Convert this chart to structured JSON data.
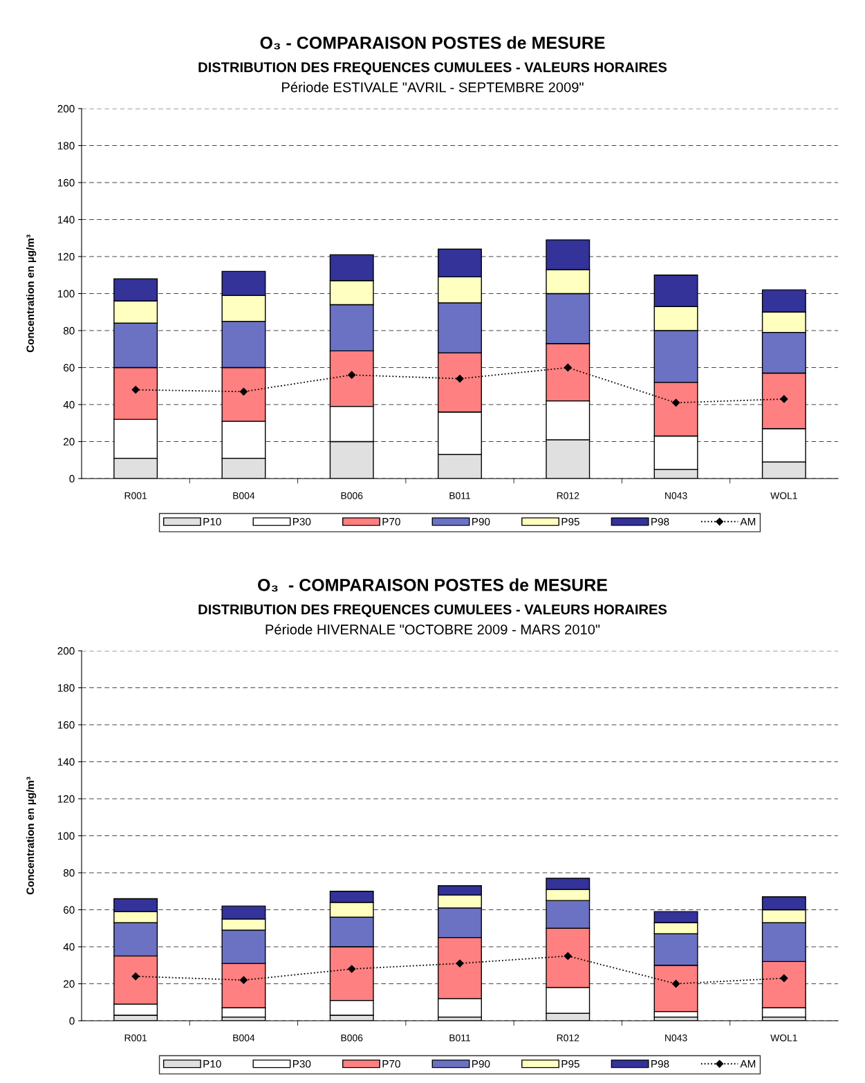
{
  "chart_data": [
    {
      "type": "bar",
      "title": "O₃ - COMPARAISON POSTES de MESURE\nDISTRIBUTION DES FREQUENCES CUMULEES - VALEURS HORAIRES",
      "subtitle": "Période ESTIVALE \"AVRIL - SEPTEMBRE 2009\"",
      "ylabel": "Concentration en µg/m³",
      "categories": [
        "R001",
        "B004",
        "B006",
        "B011",
        "R012",
        "N043",
        "WOL1"
      ],
      "stacked": true,
      "ylim": [
        0,
        200
      ],
      "yticks": [
        0,
        20,
        40,
        60,
        80,
        100,
        120,
        140,
        160,
        180,
        200
      ],
      "grid": "y",
      "legend": "bottom",
      "series": [
        {
          "name": "P10",
          "color": "#e0e0e0",
          "values": [
            11,
            11,
            20,
            13,
            21,
            5,
            9
          ]
        },
        {
          "name": "P30",
          "color": "#ffffff",
          "values": [
            21,
            20,
            19,
            23,
            21,
            18,
            18
          ]
        },
        {
          "name": "P70",
          "color": "#ff8080",
          "values": [
            28,
            29,
            30,
            32,
            31,
            29,
            30
          ]
        },
        {
          "name": "P90",
          "color": "#6b72c4",
          "values": [
            24,
            25,
            25,
            27,
            27,
            28,
            22
          ]
        },
        {
          "name": "P95",
          "color": "#ffffc0",
          "values": [
            12,
            14,
            13,
            14,
            13,
            13,
            11
          ]
        },
        {
          "name": "P98",
          "color": "#333399",
          "values": [
            12,
            13,
            14,
            15,
            16,
            17,
            12
          ]
        },
        {
          "name": "AM",
          "type": "line",
          "color": "#000000",
          "marker": "diamond",
          "line_style": "dotted",
          "values": [
            48,
            47,
            56,
            54,
            60,
            41,
            43
          ]
        }
      ]
    },
    {
      "type": "bar",
      "title": "O₃  - COMPARAISON POSTES de MESURE\nDISTRIBUTION DES FREQUENCES CUMULEES - VALEURS HORAIRES",
      "subtitle": "Période HIVERNALE \"OCTOBRE 2009 - MARS 2010\"",
      "ylabel": "Concentration en µg/m³",
      "categories": [
        "R001",
        "B004",
        "B006",
        "B011",
        "R012",
        "N043",
        "WOL1"
      ],
      "stacked": true,
      "ylim": [
        0,
        200
      ],
      "yticks": [
        0,
        20,
        40,
        60,
        80,
        100,
        120,
        140,
        160,
        180,
        200
      ],
      "grid": "y",
      "legend": "bottom",
      "series": [
        {
          "name": "P10",
          "color": "#e0e0e0",
          "values": [
            3,
            2,
            3,
            2,
            4,
            2,
            2
          ]
        },
        {
          "name": "P30",
          "color": "#ffffff",
          "values": [
            6,
            5,
            8,
            10,
            14,
            3,
            5
          ]
        },
        {
          "name": "P70",
          "color": "#ff8080",
          "values": [
            26,
            24,
            29,
            33,
            32,
            25,
            25
          ]
        },
        {
          "name": "P90",
          "color": "#6b72c4",
          "values": [
            18,
            18,
            16,
            16,
            15,
            17,
            21
          ]
        },
        {
          "name": "P95",
          "color": "#ffffc0",
          "values": [
            6,
            6,
            8,
            7,
            6,
            6,
            7
          ]
        },
        {
          "name": "P98",
          "color": "#333399",
          "values": [
            7,
            7,
            6,
            5,
            6,
            6,
            7
          ]
        },
        {
          "name": "AM",
          "type": "line",
          "color": "#000000",
          "marker": "diamond",
          "line_style": "dotted",
          "values": [
            24,
            22,
            28,
            31,
            35,
            20,
            23
          ]
        }
      ]
    }
  ]
}
